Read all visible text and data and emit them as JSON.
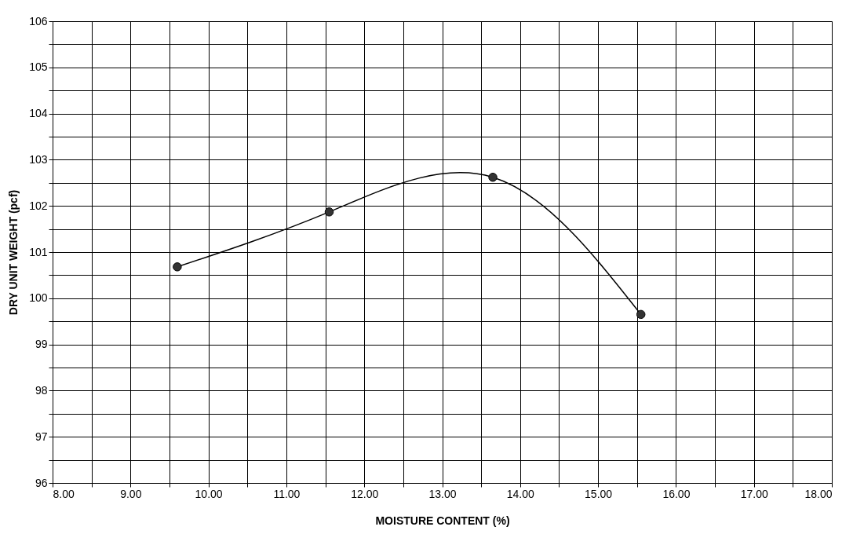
{
  "chart_data": {
    "type": "line",
    "xlabel": "MOISTURE CONTENT (%)",
    "ylabel": "DRY UNIT WEIGHT (pcf)",
    "x": [
      9.6,
      11.55,
      13.65,
      15.55
    ],
    "series": [
      {
        "color": "#333333",
        "values": [
          100.68,
          101.87,
          102.62,
          99.65
        ]
      }
    ],
    "marker": "circle",
    "line_style": "solid",
    "grid": true,
    "xlim": [
      8,
      18
    ],
    "ylim": [
      96,
      106
    ],
    "xticks": [
      {
        "value": 8,
        "label": "8.00"
      },
      {
        "value": 8.5,
        "label": null
      },
      {
        "value": 9,
        "label": "9.00"
      },
      {
        "value": 9.5,
        "label": null
      },
      {
        "value": 10,
        "label": "10.00"
      },
      {
        "value": 10.5,
        "label": null
      },
      {
        "value": 11,
        "label": "11.00"
      },
      {
        "value": 11.5,
        "label": null
      },
      {
        "value": 12,
        "label": "12.00"
      },
      {
        "value": 12.5,
        "label": null
      },
      {
        "value": 13,
        "label": "13.00"
      },
      {
        "value": 13.5,
        "label": null
      },
      {
        "value": 14,
        "label": "14.00"
      },
      {
        "value": 14.5,
        "label": null
      },
      {
        "value": 15,
        "label": "15.00"
      },
      {
        "value": 15.5,
        "label": null
      },
      {
        "value": 16,
        "label": "16.00"
      },
      {
        "value": 16.5,
        "label": null
      },
      {
        "value": 17,
        "label": "17.00"
      },
      {
        "value": 17.5,
        "label": null
      },
      {
        "value": 18,
        "label": "18.00"
      }
    ],
    "yticks": [
      96,
      {
        "value": 96.5,
        "label": null
      },
      97,
      {
        "value": 97.5,
        "label": null
      },
      98,
      {
        "value": 98.5,
        "label": null
      },
      99,
      {
        "value": 99.5,
        "label": null
      },
      100,
      {
        "value": 100.5,
        "label": null
      },
      101,
      {
        "value": 101.5,
        "label": null
      },
      102,
      {
        "value": 102.5,
        "label": null
      },
      103,
      {
        "value": 103.5,
        "label": null
      },
      104,
      {
        "value": 104.5,
        "label": null
      },
      105,
      {
        "value": 105.5,
        "label": null
      },
      106
    ]
  }
}
